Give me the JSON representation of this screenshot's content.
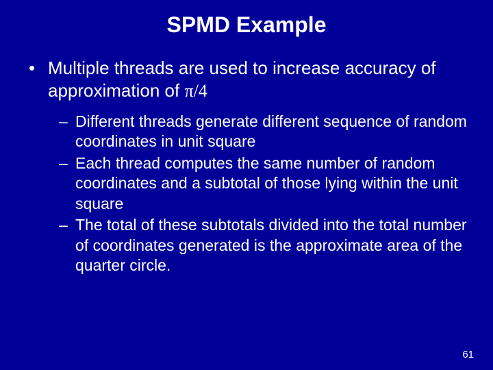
{
  "background_color": "#000099",
  "text_color": "#ffffff",
  "title": "SPMD Example",
  "title_fontsize": 32,
  "body_fontsize_l1": 26,
  "body_fontsize_l2": 23,
  "bullets": {
    "l1_prefix": "Multiple threads are used to increase accuracy of approximation of ",
    "l1_pi": "π/4",
    "l2": [
      "Different threads generate different sequence of random coordinates in unit square",
      "Each thread computes the same number of random coordinates and a subtotal of those lying within the unit square",
      "The total of these subtotals divided into the total number of coordinates generated is the approximate area of the quarter circle."
    ]
  },
  "page_number": "61"
}
